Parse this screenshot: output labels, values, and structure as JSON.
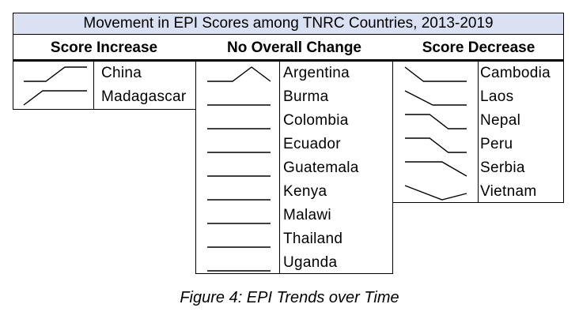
{
  "title": "Movement in EPI Scores among TNRC Countries, 2013-2019",
  "columns": [
    {
      "heading": "Score Increase",
      "countries": [
        {
          "name": "China",
          "trend": [
            0,
            0,
            1
          ]
        },
        {
          "name": "Madagascar",
          "trend": [
            0,
            1,
            1
          ]
        }
      ]
    },
    {
      "heading": "No Overall Change",
      "countries": [
        {
          "name": "Argentina",
          "trend": [
            0,
            1,
            0
          ]
        },
        {
          "name": "Burma",
          "trend": [
            0,
            0,
            0
          ]
        },
        {
          "name": "Colombia",
          "trend": [
            0,
            0,
            0
          ]
        },
        {
          "name": "Ecuador",
          "trend": [
            0,
            0,
            0
          ]
        },
        {
          "name": "Guatemala",
          "trend": [
            0,
            0,
            0
          ]
        },
        {
          "name": "Kenya",
          "trend": [
            0,
            0,
            0
          ]
        },
        {
          "name": "Malawi",
          "trend": [
            0,
            0,
            0
          ]
        },
        {
          "name": "Thailand",
          "trend": [
            0,
            0,
            0
          ]
        },
        {
          "name": "Uganda",
          "trend": [
            0,
            0,
            0
          ]
        }
      ]
    },
    {
      "heading": "Score Decrease",
      "countries": [
        {
          "name": "Cambodia",
          "trend": [
            1,
            0,
            0
          ]
        },
        {
          "name": "Laos",
          "trend": [
            1,
            0,
            0
          ]
        },
        {
          "name": "Nepal",
          "trend": [
            1,
            1,
            0
          ]
        },
        {
          "name": "Peru",
          "trend": [
            1,
            1,
            0
          ]
        },
        {
          "name": "Serbia",
          "trend": [
            1,
            1,
            0
          ]
        },
        {
          "name": "Vietnam",
          "trend": [
            1,
            0,
            0.6
          ]
        }
      ]
    }
  ],
  "caption": "Figure 4: EPI Trends over Time"
}
